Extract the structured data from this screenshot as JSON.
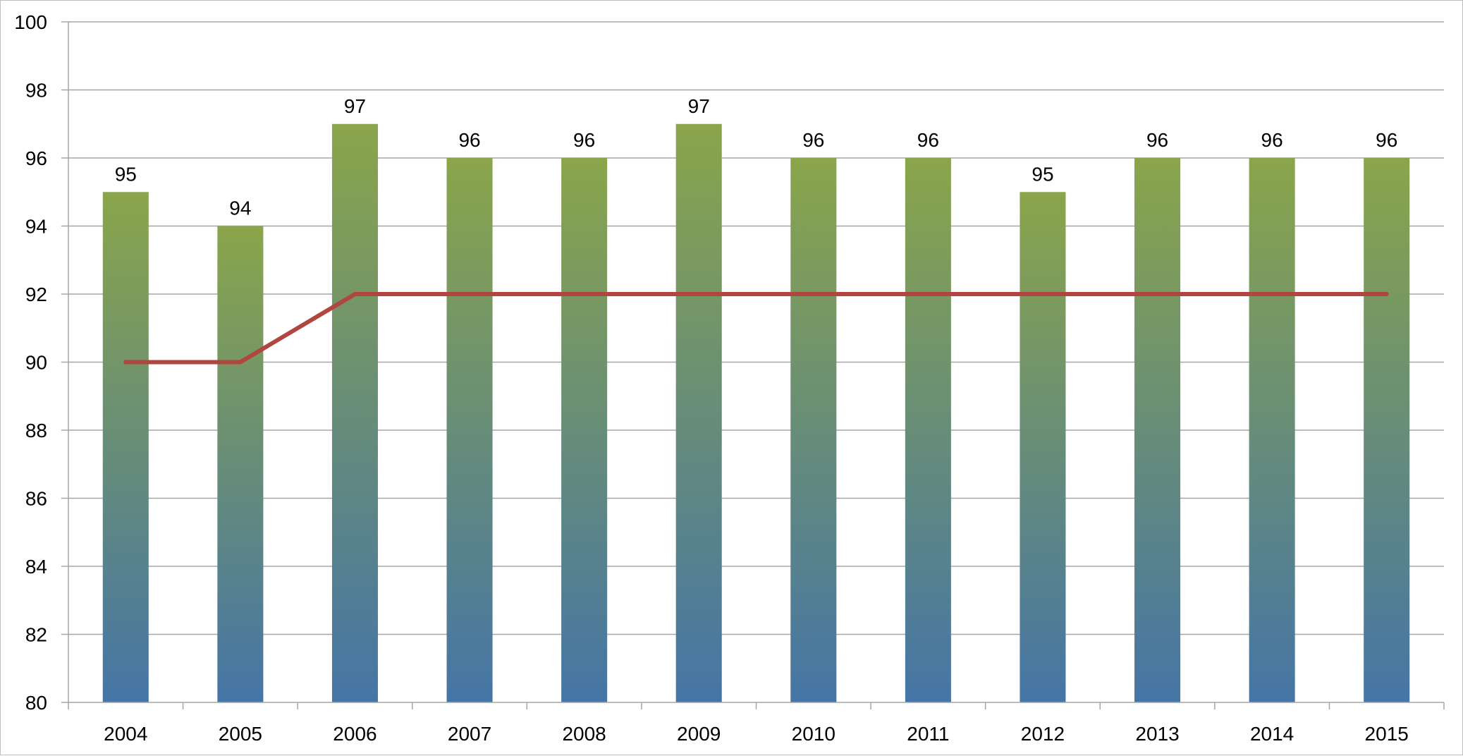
{
  "chart_data": {
    "type": "bar",
    "categories": [
      "2004",
      "2005",
      "2006",
      "2007",
      "2008",
      "2009",
      "2010",
      "2011",
      "2012",
      "2013",
      "2014",
      "2015"
    ],
    "ylim": [
      80,
      100
    ],
    "yticks": [
      80,
      82,
      84,
      86,
      88,
      90,
      92,
      94,
      96,
      98,
      100
    ],
    "grid": true,
    "legend": "none",
    "title": "",
    "xlabel": "",
    "ylabel": "",
    "series": [
      {
        "type": "bar",
        "values": [
          95,
          94,
          97,
          96,
          96,
          97,
          96,
          96,
          95,
          96,
          96,
          96
        ],
        "data_labels": true
      },
      {
        "type": "line",
        "values": [
          90,
          90,
          92,
          92,
          92,
          92,
          92,
          92,
          92,
          92,
          92,
          92
        ],
        "data_labels": false
      }
    ],
    "colors": {
      "bar_top": "#8aa54a",
      "bar_bottom": "#4575a6",
      "line": "#b0463f",
      "grid": "#a6a6a6",
      "axis": "#a6a6a6"
    }
  }
}
